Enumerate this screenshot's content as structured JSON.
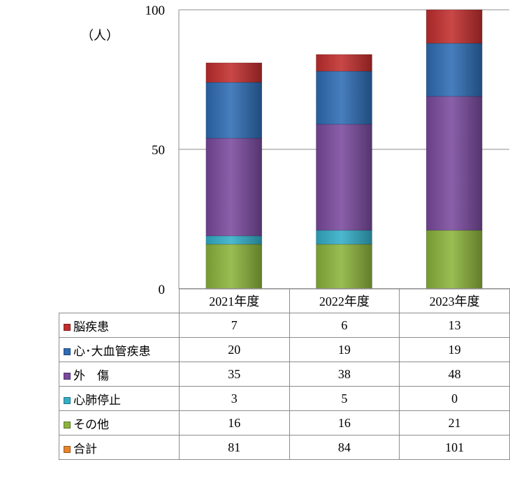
{
  "chart_data": {
    "type": "bar",
    "stacked": true,
    "unit_label": "（人）",
    "categories": [
      "2021年度",
      "2022年度",
      "2023年度"
    ],
    "ylim": [
      0,
      100
    ],
    "yticks": [
      "0",
      "50",
      "100"
    ],
    "grid": true,
    "series": [
      {
        "name": "その他",
        "values": [
          "16",
          "16",
          "21"
        ],
        "color": "#8cb43c"
      },
      {
        "name": "心肺停止",
        "values": [
          "3",
          "5",
          "0"
        ],
        "color": "#34aec8"
      },
      {
        "name": "外　傷",
        "values": [
          "35",
          "38",
          "48"
        ],
        "color": "#7a4a9e"
      },
      {
        "name": "心･大血管疾患",
        "values": [
          "20",
          "19",
          "19"
        ],
        "color": "#2e6cb4"
      },
      {
        "name": "脳疾患",
        "values": [
          "7",
          "6",
          "13"
        ],
        "color": "#c22e2e"
      }
    ],
    "table_rows": [
      {
        "name": "脳疾患",
        "values": [
          "7",
          "6",
          "13"
        ],
        "color": "#c22e2e"
      },
      {
        "name": "心･大血管疾患",
        "values": [
          "20",
          "19",
          "19"
        ],
        "color": "#2e6cb4"
      },
      {
        "name": "外　傷",
        "values": [
          "35",
          "38",
          "48"
        ],
        "color": "#7a4a9e"
      },
      {
        "name": "心肺停止",
        "values": [
          "3",
          "5",
          "0"
        ],
        "color": "#34aec8"
      },
      {
        "name": "その他",
        "values": [
          "16",
          "16",
          "21"
        ],
        "color": "#8cb43c"
      },
      {
        "name": "合計",
        "values": [
          "81",
          "84",
          "101"
        ],
        "color": "#e8842c"
      }
    ]
  }
}
